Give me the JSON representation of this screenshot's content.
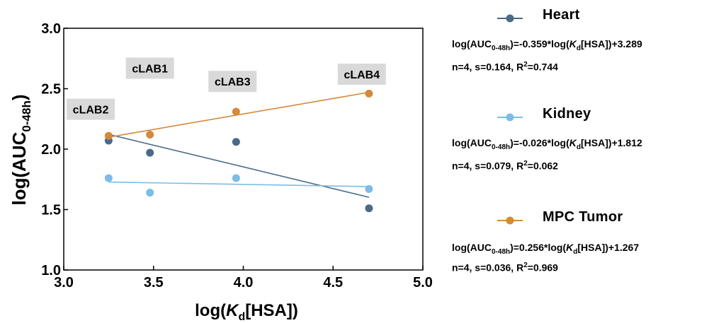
{
  "chart_data": {
    "type": "scatter",
    "xlabel": "log(Kₓ[HSA])",
    "xlabel_parts": {
      "pre": "log(",
      "var": "K",
      "sub": "d",
      "post": "[HSA])"
    },
    "ylabel_parts": {
      "pre": "log(AUC",
      "sub": "0-48h",
      "post": ")"
    },
    "xlim": [
      3.0,
      5.0
    ],
    "ylim": [
      1.0,
      3.0
    ],
    "xticks": [
      3.0,
      3.5,
      4.0,
      4.5,
      5.0
    ],
    "yticks": [
      1.0,
      1.5,
      2.0,
      2.5,
      3.0
    ],
    "tick_labels_x": [
      "3.0",
      "3.5",
      "4.0",
      "4.5",
      "5.0"
    ],
    "tick_labels_y": [
      "1.0",
      "1.5",
      "2.0",
      "2.5",
      "3.0"
    ],
    "grid": false,
    "legend_position": "right",
    "compound_labels": [
      {
        "text": "cLAB2",
        "x": 3.15,
        "y": 2.33
      },
      {
        "text": "cLAB1",
        "x": 3.48,
        "y": 2.67
      },
      {
        "text": "cLAB3",
        "x": 3.94,
        "y": 2.56
      },
      {
        "text": "cLAB4",
        "x": 4.66,
        "y": 2.62
      }
    ],
    "series": [
      {
        "name": "Heart",
        "color": "#4b6a88",
        "points": [
          [
            3.25,
            2.07
          ],
          [
            3.48,
            1.97
          ],
          [
            3.96,
            2.06
          ],
          [
            4.7,
            1.51
          ]
        ],
        "fit": {
          "slope": -0.359,
          "intercept": 3.289,
          "x_range": [
            3.25,
            4.7
          ]
        },
        "equation": {
          "coef": "-0.359",
          "const": "+3.289"
        },
        "stats": {
          "n": "n=4",
          "s": "s=0.164",
          "r2": "0.744"
        }
      },
      {
        "name": "Kidney",
        "color": "#7cbde8",
        "points": [
          [
            3.25,
            1.76
          ],
          [
            3.48,
            1.64
          ],
          [
            3.96,
            1.76
          ],
          [
            4.7,
            1.67
          ]
        ],
        "fit": {
          "slope": -0.026,
          "intercept": 1.812,
          "x_range": [
            3.25,
            4.7
          ]
        },
        "equation": {
          "coef": "-0.026",
          "const": "+1.812"
        },
        "stats": {
          "n": "n=4",
          "s": "s=0.079",
          "r2": "0.062"
        }
      },
      {
        "name": "MPC Tumor",
        "color": "#d4893c",
        "points": [
          [
            3.25,
            2.11
          ],
          [
            3.48,
            2.12
          ],
          [
            3.96,
            2.31
          ],
          [
            4.7,
            2.46
          ]
        ],
        "fit": {
          "slope": 0.256,
          "intercept": 1.267,
          "x_range": [
            3.25,
            4.7
          ]
        },
        "equation": {
          "coef": "0.256",
          "const": "+1.267"
        },
        "stats": {
          "n": "n=4",
          "s": "s=0.036",
          "r2": "0.969"
        }
      }
    ]
  }
}
